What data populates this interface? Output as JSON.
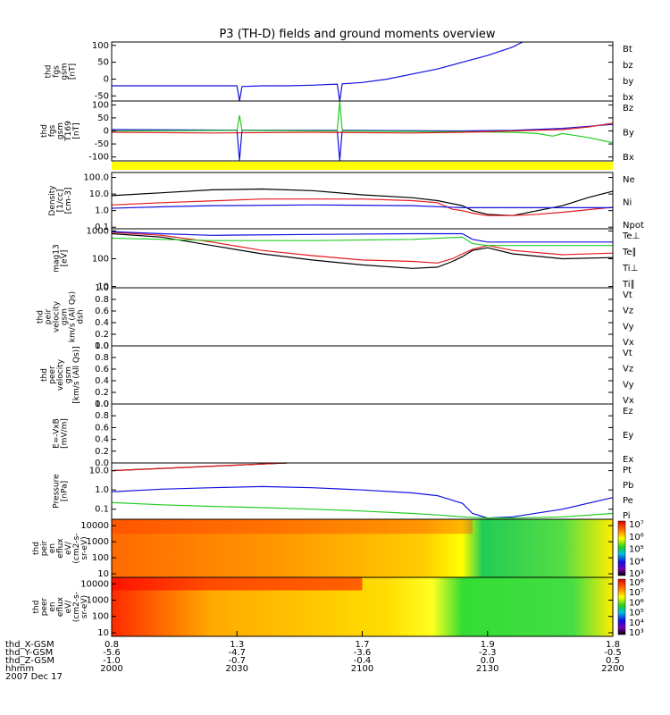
{
  "title": "P3 (TH-D) fields and ground moments overview",
  "ephemeris": {
    "rows": [
      {
        "label": "thd_X-GSM",
        "values": [
          "0.8",
          "1.3",
          "1.7",
          "1.9",
          "1.8"
        ]
      },
      {
        "label": "thd_Y-GSM",
        "values": [
          "-5.6",
          "-4.7",
          "-3.6",
          "-2.3",
          "-0.5"
        ]
      },
      {
        "label": "thd_Z-GSM",
        "values": [
          "-1.0",
          "-0.7",
          "-0.4",
          "0.0",
          "0.5"
        ]
      },
      {
        "label": "hhmm",
        "values": [
          "2000",
          "2030",
          "2100",
          "2130",
          "2200"
        ]
      }
    ],
    "date": "2007 Dec 17"
  },
  "colors": {
    "black": "#000000",
    "red": "#e41a1c",
    "green": "#22cc22",
    "blue": "#1010e0",
    "yellow": "#ffff00"
  },
  "chart_data": [
    {
      "type": "line",
      "id": "fgs",
      "ylabel_lines": [
        "thd",
        "fgs",
        "gsm",
        "[nT]"
      ],
      "yticks": [
        "100",
        "50",
        "0",
        "-50"
      ],
      "ytick_values": [
        100,
        50,
        0,
        -50
      ],
      "ylim": [
        -65,
        110
      ],
      "scale": "linear",
      "legend": [
        {
          "text": "Bt",
          "color": "#000000"
        },
        {
          "text": "bz",
          "color": "#e41a1c"
        },
        {
          "text": "by",
          "color": "#22cc22"
        },
        {
          "text": "bx",
          "color": "#1010e0"
        }
      ],
      "series": [
        {
          "color": "#1010e0",
          "x": [
            0,
            20,
            25,
            25.5,
            26,
            30,
            35,
            40,
            45,
            45.5,
            46,
            50,
            55,
            60,
            65,
            70,
            75,
            80,
            82
          ],
          "y": [
            -20,
            -20,
            -20,
            -65,
            -22,
            -20,
            -20,
            -18,
            -15,
            -65,
            -14,
            -10,
            0,
            15,
            30,
            50,
            70,
            95,
            110
          ]
        }
      ]
    },
    {
      "type": "line",
      "id": "fgs169",
      "ylabel_lines": [
        "thd",
        "fgs",
        "gsm",
        "T169",
        "[nT]"
      ],
      "yticks": [
        "100",
        "50",
        "0",
        "-50",
        "-100"
      ],
      "ytick_values": [
        100,
        50,
        0,
        -50,
        -100
      ],
      "ylim": [
        -115,
        115
      ],
      "scale": "linear",
      "legend": [
        {
          "text": "Bz",
          "color": "#e41a1c"
        },
        {
          "text": "By",
          "color": "#22cc22"
        },
        {
          "text": "Bx",
          "color": "#1010e0"
        }
      ],
      "series": [
        {
          "color": "#1010e0",
          "x": [
            0,
            25,
            25.5,
            26,
            45,
            45.5,
            46,
            70,
            80,
            90,
            100
          ],
          "y": [
            5,
            3,
            -115,
            3,
            2,
            -115,
            2,
            0,
            2,
            10,
            25
          ]
        },
        {
          "color": "#22cc22",
          "x": [
            0,
            25,
            25.5,
            26,
            45,
            45.5,
            46,
            70,
            80,
            85,
            88,
            90,
            95,
            100
          ],
          "y": [
            0,
            2,
            60,
            2,
            0,
            115,
            0,
            -3,
            -5,
            -10,
            -20,
            -10,
            -25,
            -45
          ]
        },
        {
          "color": "#e41a1c",
          "x": [
            0,
            20,
            40,
            60,
            70,
            80,
            90,
            95,
            100
          ],
          "y": [
            -5,
            -8,
            -5,
            -8,
            -5,
            0,
            5,
            15,
            30
          ]
        }
      ]
    },
    {
      "type": "line",
      "id": "density",
      "ylabel_lines": [
        "Density",
        "[1/cc]",
        "[cm-3]"
      ],
      "yticks": [
        "100.0",
        "10.0",
        "1.0",
        "0.1"
      ],
      "ytick_values": [
        100,
        10,
        1,
        0.1
      ],
      "ylim": [
        0.08,
        200
      ],
      "scale": "log",
      "legend": [
        {
          "text": "Ne",
          "color": "#e41a1c"
        },
        {
          "text": "Ni",
          "color": "#000000"
        },
        {
          "text": "Npot",
          "color": "#1010e0"
        }
      ],
      "series": [
        {
          "color": "#000000",
          "x": [
            0,
            10,
            20,
            30,
            40,
            50,
            60,
            65,
            70,
            72,
            75,
            80,
            85,
            90,
            95,
            100
          ],
          "y": [
            8,
            12,
            18,
            20,
            16,
            9,
            6,
            4,
            2,
            1,
            0.6,
            0.5,
            1,
            2,
            6,
            15
          ]
        },
        {
          "color": "#e41a1c",
          "x": [
            0,
            10,
            30,
            50,
            60,
            65,
            68,
            70,
            72,
            75,
            80,
            85,
            90,
            100
          ],
          "y": [
            2.2,
            3,
            5,
            5,
            4,
            3,
            1.2,
            1,
            0.7,
            0.5,
            0.5,
            0.6,
            0.8,
            1.6
          ]
        },
        {
          "color": "#1010e0",
          "x": [
            0,
            10,
            20,
            40,
            60,
            70,
            75,
            80,
            90,
            100
          ],
          "y": [
            1.4,
            1.7,
            2,
            2.2,
            2,
            1.5,
            1.5,
            1.5,
            1.5,
            1.5
          ]
        }
      ]
    },
    {
      "type": "line",
      "id": "temperature",
      "ylabel_lines": [
        "mag13",
        "[eV]"
      ],
      "yticks": [
        "1000",
        "100",
        "10"
      ],
      "ytick_values": [
        1000,
        100,
        10
      ],
      "ylim": [
        9,
        1200
      ],
      "scale": "log",
      "legend": [
        {
          "text": "Te⊥",
          "color": "#e41a1c"
        },
        {
          "text": "Te∥",
          "color": "#000000"
        },
        {
          "text": "Ti⊥",
          "color": "#1010e0"
        },
        {
          "text": "Ti∥",
          "color": "#22cc22"
        }
      ],
      "series": [
        {
          "color": "#000000",
          "x": [
            0,
            10,
            20,
            30,
            40,
            50,
            60,
            65,
            68,
            70,
            72,
            75,
            80,
            90,
            100
          ],
          "y": [
            800,
            600,
            300,
            150,
            90,
            60,
            45,
            50,
            80,
            120,
            200,
            250,
            150,
            100,
            110
          ]
        },
        {
          "color": "#e41a1c",
          "x": [
            0,
            10,
            20,
            30,
            40,
            50,
            60,
            65,
            68,
            70,
            72,
            75,
            80,
            90,
            100
          ],
          "y": [
            900,
            700,
            400,
            200,
            130,
            90,
            80,
            70,
            100,
            150,
            220,
            300,
            200,
            140,
            160
          ]
        },
        {
          "color": "#22cc22",
          "x": [
            0,
            10,
            20,
            40,
            60,
            70,
            72,
            75,
            80,
            90,
            100
          ],
          "y": [
            550,
            500,
            450,
            450,
            500,
            600,
            350,
            300,
            300,
            300,
            300
          ]
        },
        {
          "color": "#1010e0",
          "x": [
            0,
            10,
            20,
            40,
            60,
            70,
            72,
            75,
            80,
            90,
            100
          ],
          "y": [
            950,
            800,
            700,
            750,
            800,
            800,
            500,
            400,
            400,
            400,
            400
          ]
        }
      ]
    },
    {
      "type": "line",
      "id": "ion-velocity",
      "ylabel_lines": [
        "thd",
        "peir",
        "velocity",
        "gsm",
        "km/s (All Qs)",
        "dsh"
      ],
      "yticks": [
        "1.0",
        "0.8",
        "0.6",
        "0.4",
        "0.2",
        "0.0"
      ],
      "ytick_values": [
        1,
        0.8,
        0.6,
        0.4,
        0.2,
        0
      ],
      "ylim": [
        0,
        1
      ],
      "scale": "linear",
      "legend": [
        {
          "text": "Vt",
          "color": "#000000"
        },
        {
          "text": "Vz",
          "color": "#e41a1c"
        },
        {
          "text": "Vy",
          "color": "#22cc22"
        },
        {
          "text": "Vx",
          "color": "#1010e0"
        }
      ],
      "series": []
    },
    {
      "type": "line",
      "id": "electron-velocity",
      "ylabel_lines": [
        "thd",
        "peer",
        "velocity",
        "gsm",
        "[km/s (All Qs)]"
      ],
      "yticks": [
        "1.0",
        "0.8",
        "0.6",
        "0.4",
        "0.2",
        "0.0"
      ],
      "ytick_values": [
        1,
        0.8,
        0.6,
        0.4,
        0.2,
        0
      ],
      "ylim": [
        0,
        1
      ],
      "scale": "linear",
      "legend": [
        {
          "text": "Vt",
          "color": "#000000"
        },
        {
          "text": "Vz",
          "color": "#e41a1c"
        },
        {
          "text": "Vy",
          "color": "#22cc22"
        },
        {
          "text": "Vx",
          "color": "#1010e0"
        }
      ],
      "series": []
    },
    {
      "type": "line",
      "id": "efield",
      "ylabel_lines": [
        "E=-VxB",
        "[mV/m]"
      ],
      "yticks": [
        "1.0",
        "0.8",
        "0.6",
        "0.4",
        "0.2",
        "0.0"
      ],
      "ytick_values": [
        1,
        0.8,
        0.6,
        0.4,
        0.2,
        0
      ],
      "ylim": [
        0,
        1
      ],
      "scale": "linear",
      "legend": [
        {
          "text": "Ez",
          "color": "#e41a1c"
        },
        {
          "text": "Ey",
          "color": "#22cc22"
        },
        {
          "text": "Ex",
          "color": "#1010e0"
        }
      ],
      "series": []
    },
    {
      "type": "line",
      "id": "pressure",
      "ylabel_lines": [
        "Pressure",
        "[nPa]"
      ],
      "yticks": [
        "10.0",
        "1.0",
        "0.1"
      ],
      "ytick_values": [
        10,
        1,
        0.1
      ],
      "ylim": [
        0.03,
        25
      ],
      "scale": "log",
      "legend": [
        {
          "text": "Pt",
          "color": "#000000"
        },
        {
          "text": "Pb",
          "color": "#e41a1c"
        },
        {
          "text": "Pe",
          "color": "#22cc22"
        },
        {
          "text": "Pi",
          "color": "#1010e0"
        }
      ],
      "series": [
        {
          "color": "#000000",
          "x": [
            0,
            10,
            20,
            30,
            35
          ],
          "y": [
            10,
            13,
            17,
            22,
            25
          ]
        },
        {
          "color": "#e41a1c",
          "x": [
            0,
            10,
            20,
            30,
            35
          ],
          "y": [
            10,
            13,
            17,
            22,
            25
          ]
        },
        {
          "color": "#1010e0",
          "x": [
            0,
            10,
            20,
            30,
            40,
            50,
            60,
            65,
            70,
            72,
            75,
            80,
            90,
            100
          ],
          "y": [
            0.8,
            1.1,
            1.3,
            1.5,
            1.3,
            1,
            0.7,
            0.5,
            0.2,
            0.06,
            0.035,
            0.04,
            0.1,
            0.4
          ]
        },
        {
          "color": "#22cc22",
          "x": [
            0,
            10,
            20,
            30,
            40,
            50,
            60,
            65,
            70,
            75,
            80,
            90,
            100
          ],
          "y": [
            0.22,
            0.17,
            0.14,
            0.12,
            0.1,
            0.08,
            0.06,
            0.05,
            0.04,
            0.035,
            0.035,
            0.04,
            0.06
          ]
        }
      ]
    },
    {
      "type": "heatmap",
      "id": "ion-eflux",
      "ylabel_lines": [
        "thd",
        "peir",
        "en",
        "eflux",
        "eV/",
        "(cm2-s-",
        "sr-eV)"
      ],
      "yticks": [
        "10000",
        "1000",
        "100",
        "10"
      ],
      "ytick_values": [
        10000,
        1000,
        100,
        10
      ],
      "ylim": [
        6,
        25000
      ],
      "scale": "log",
      "colorbar_ticks": [
        "10⁷",
        "10⁶",
        "10⁵",
        "10⁴",
        "10³"
      ]
    },
    {
      "type": "heatmap",
      "id": "electron-eflux",
      "ylabel_lines": [
        "thd",
        "peer",
        "en",
        "eflux",
        "eV/",
        "(cm2-s-",
        "sr-eV)"
      ],
      "yticks": [
        "10000",
        "1000",
        "100",
        "10"
      ],
      "ytick_values": [
        10000,
        1000,
        100,
        10
      ],
      "ylim": [
        6,
        25000
      ],
      "scale": "log",
      "colorbar_ticks": [
        "10⁸",
        "10⁷",
        "10⁶",
        "10⁵",
        "10⁴",
        "10³"
      ]
    }
  ]
}
